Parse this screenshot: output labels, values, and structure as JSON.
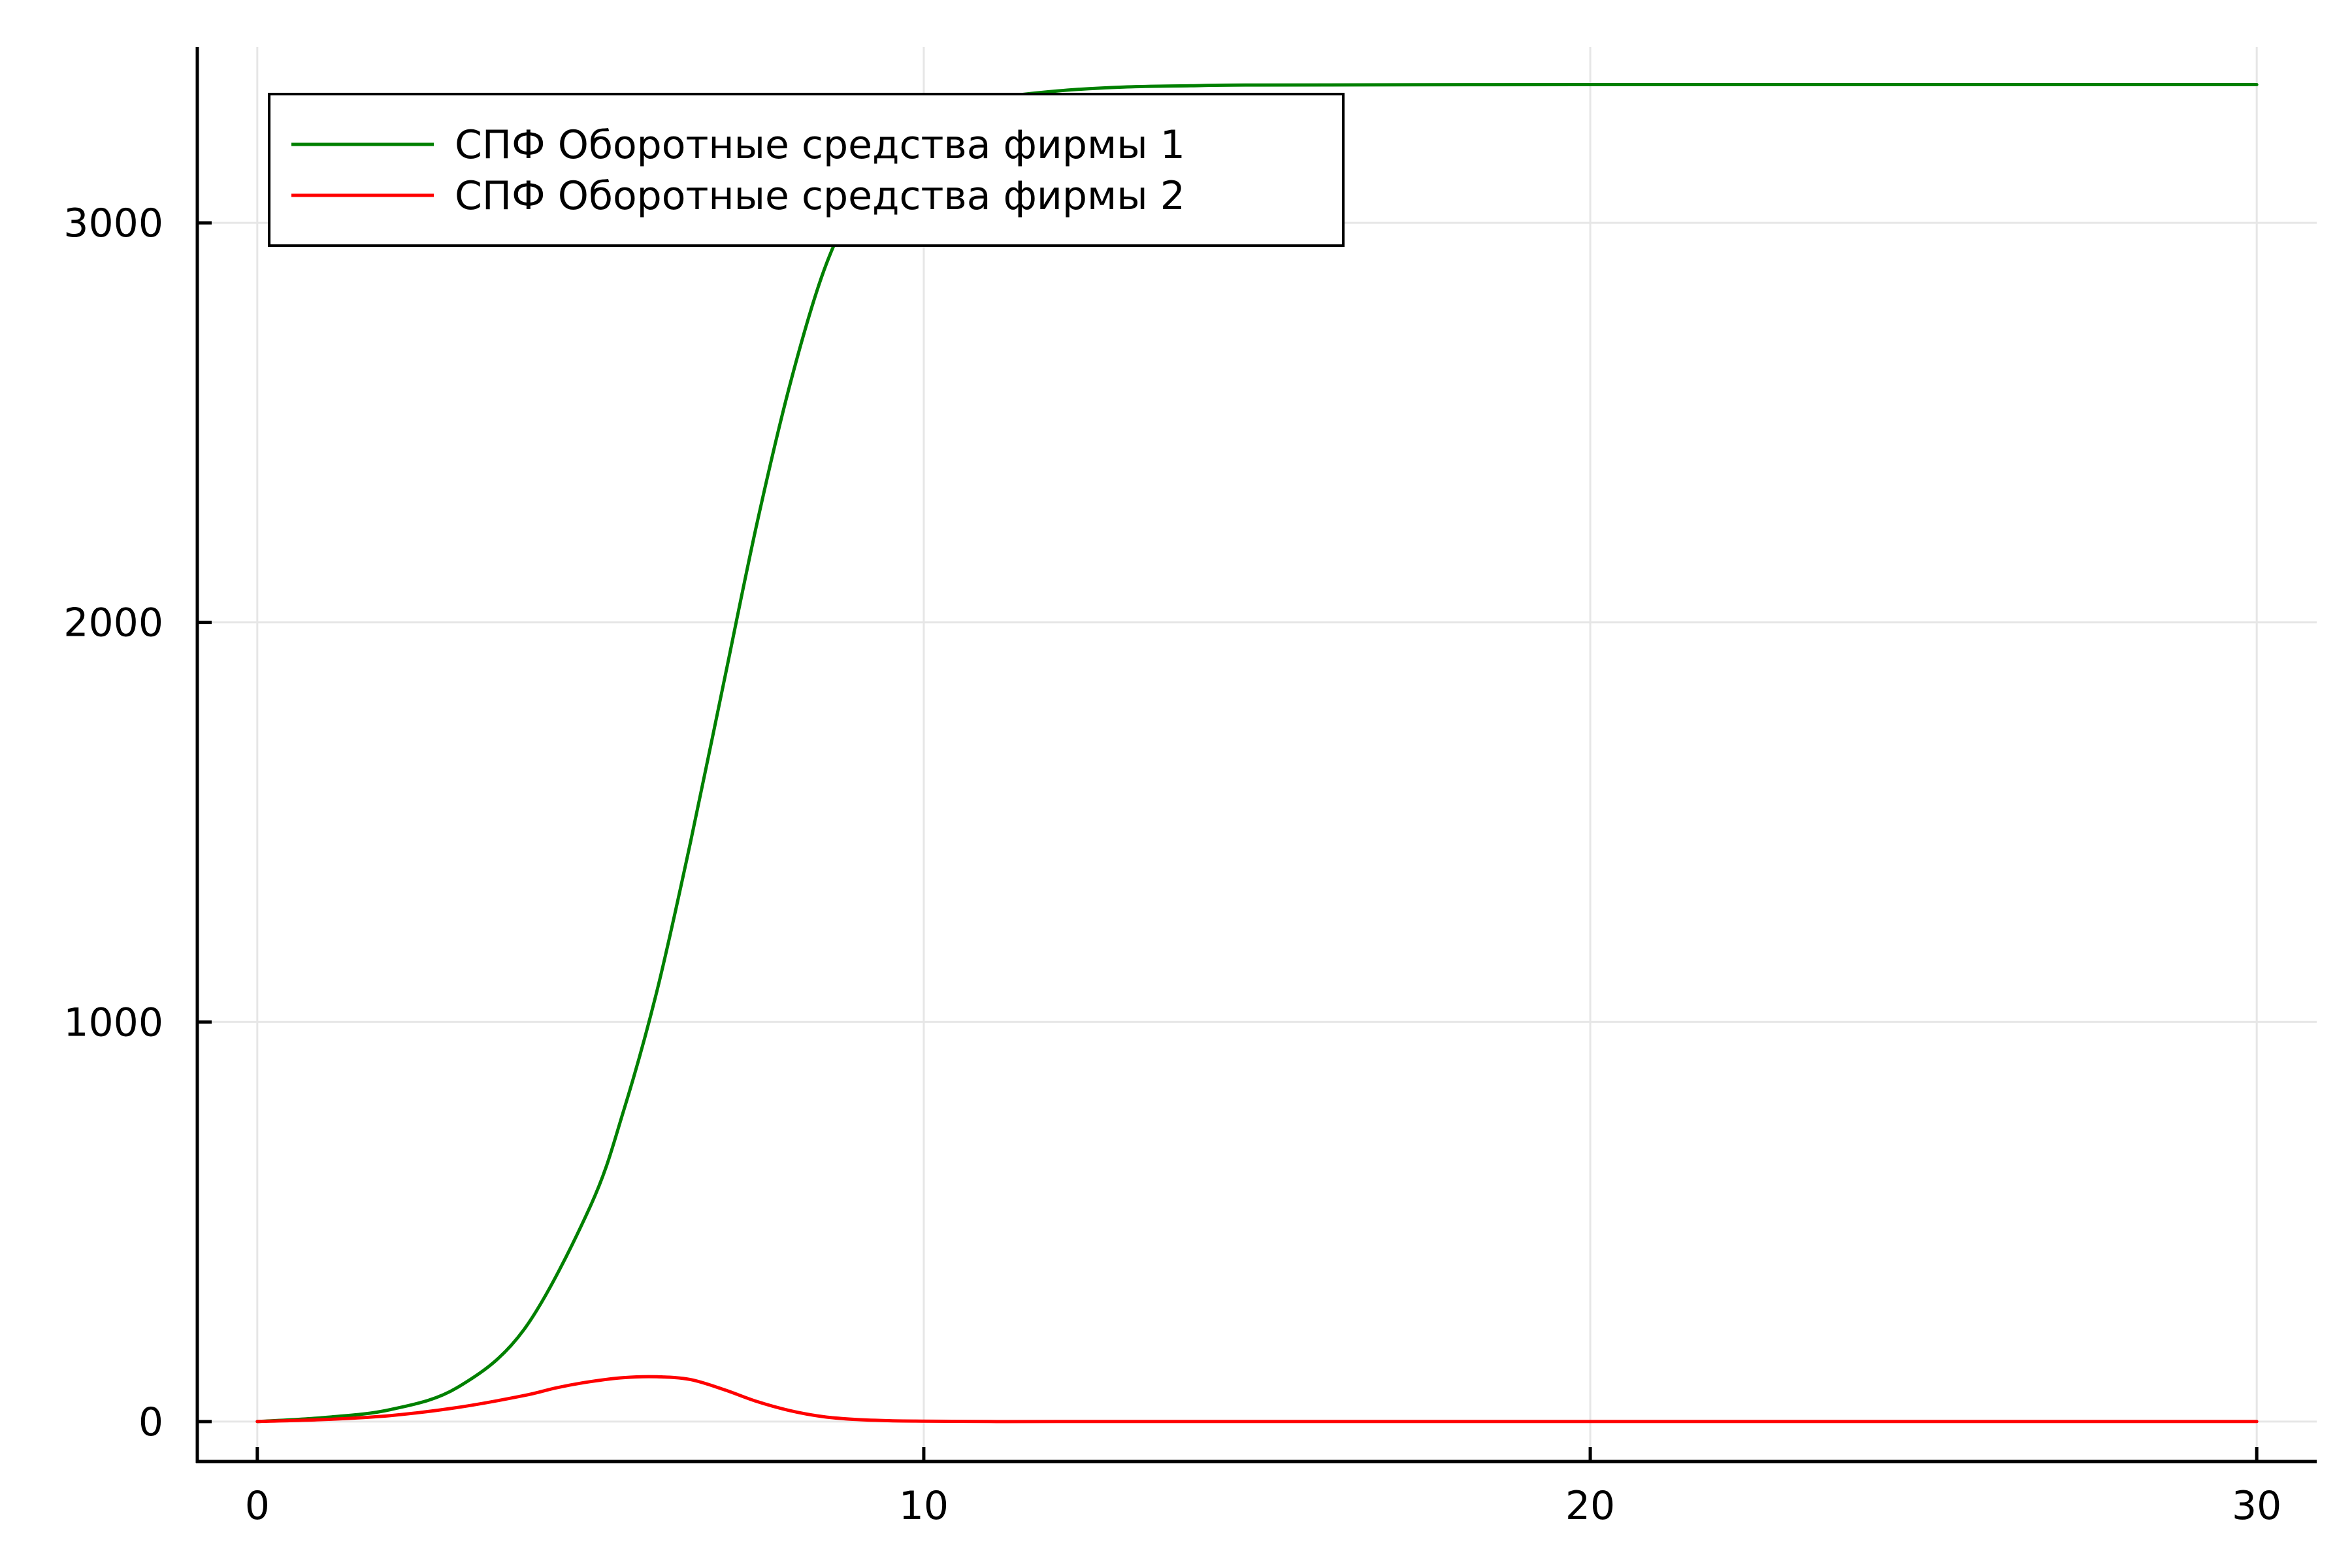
{
  "chart_data": {
    "type": "line",
    "title": "",
    "xlabel": "",
    "ylabel": "",
    "xlim": [
      -0.9,
      30.9
    ],
    "ylim": [
      -100,
      3440
    ],
    "x_ticks": [
      0,
      10,
      20,
      30
    ],
    "y_ticks": [
      0,
      1000,
      2000,
      3000
    ],
    "x_tick_labels": [
      "0",
      "10",
      "20",
      "30"
    ],
    "y_tick_labels": [
      "0",
      "1000",
      "2000",
      "3000"
    ],
    "grid": true,
    "legend_position": "top-left",
    "series": [
      {
        "name": "СПФ Оборотные средства фирмы 1",
        "color": "#008000",
        "x": [
          0,
          1,
          2,
          3,
          4,
          5,
          5.5,
          6,
          6.5,
          7,
          7.5,
          8,
          8.5,
          9,
          9.5,
          10,
          10.5,
          11,
          12,
          13,
          14,
          15,
          20,
          25,
          30
        ],
        "y": [
          0,
          10,
          30,
          85,
          230,
          540,
          780,
          1080,
          1450,
          1850,
          2250,
          2600,
          2880,
          3060,
          3170,
          3240,
          3285,
          3310,
          3330,
          3340,
          3343,
          3345,
          3346,
          3346,
          3346
        ]
      },
      {
        "name": "СПФ Оборотные средства фирмы 2",
        "color": "#ff0000",
        "x": [
          0,
          1,
          2,
          3,
          4,
          4.5,
          5,
          5.5,
          6,
          6.5,
          7,
          7.5,
          8,
          8.5,
          9,
          9.5,
          10,
          11,
          12,
          15,
          20,
          25,
          30
        ],
        "y": [
          0,
          5,
          15,
          35,
          65,
          85,
          100,
          110,
          112,
          105,
          80,
          50,
          27,
          12,
          5,
          2,
          1,
          0,
          0,
          0,
          0,
          0,
          0
        ]
      }
    ]
  }
}
